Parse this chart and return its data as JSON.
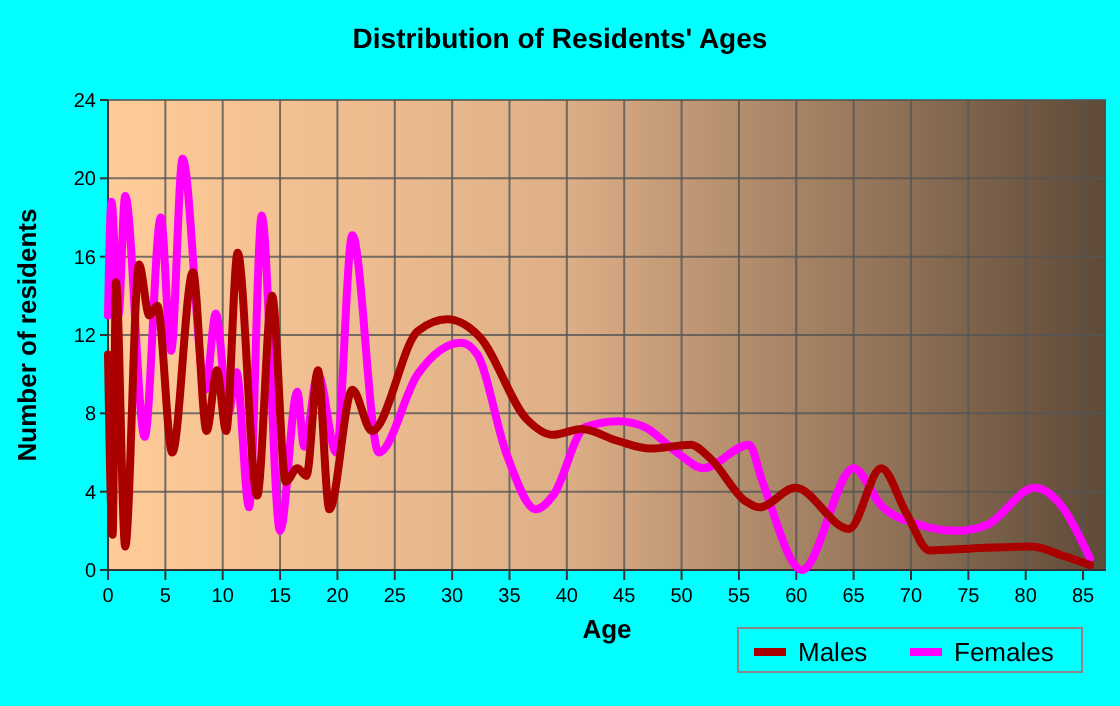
{
  "chart_data": {
    "type": "line",
    "title": "Distribution of Residents' Ages",
    "xlabel": "Age",
    "ylabel": "Number of residents",
    "xlim": [
      0,
      87
    ],
    "xticks": [
      0,
      5,
      10,
      15,
      20,
      25,
      30,
      35,
      40,
      45,
      50,
      55,
      60,
      65,
      70,
      75,
      80,
      85
    ],
    "ylim": [
      0,
      24
    ],
    "yticks": [
      0,
      4,
      8,
      12,
      16,
      20,
      24
    ],
    "grid": true,
    "legend": "bottom right",
    "marker": "none",
    "line_style": "solid",
    "series": [
      {
        "name": "Males",
        "color": "#aa0000",
        "x": [
          0,
          0.4,
          0.7,
          1.5,
          2.7,
          3.6,
          4.3,
          5.6,
          7.4,
          8.6,
          9.5,
          10.3,
          11.3,
          13,
          14.3,
          15.5,
          16.5,
          17.3,
          18.3,
          19.3,
          21.3,
          23,
          27,
          29.6,
          32.4,
          36.5,
          38.8,
          41.3,
          44.4,
          47.3,
          50.8,
          52.5,
          55.6,
          56.8,
          59.9,
          64.6,
          67.4,
          69.6,
          71.6,
          75.3,
          80.5,
          83.4,
          85.6
        ],
        "values": [
          11,
          1.8,
          14.7,
          1.2,
          15.6,
          13,
          13.5,
          6,
          15.2,
          7.1,
          10.2,
          7.1,
          16.2,
          3.8,
          14,
          4.5,
          5.2,
          4.8,
          10.2,
          3.1,
          9.2,
          7.1,
          12.2,
          12.8,
          11.9,
          7.7,
          6.9,
          7.2,
          6.6,
          6.2,
          6.4,
          5.7,
          3.5,
          3.2,
          4.2,
          2.1,
          5.2,
          2.9,
          1,
          1.1,
          1.2,
          0.7,
          0.25
        ]
      },
      {
        "name": "Females",
        "color": "#ff00ff",
        "x": [
          0,
          0.3,
          0.9,
          1.5,
          3.2,
          4.6,
          5.5,
          6.5,
          8.5,
          9.4,
          10.5,
          11.2,
          12.3,
          13.4,
          15,
          16.5,
          17.1,
          18.3,
          19.9,
          21.3,
          23.6,
          27,
          30.8,
          32.2,
          34.7,
          37.3,
          38.8,
          41.6,
          44.5,
          46.8,
          49.6,
          51.9,
          55.9,
          57,
          60.5,
          65,
          67.4,
          70.8,
          74,
          76.6,
          80.8,
          82.8,
          85.6
        ],
        "values": [
          13,
          18.8,
          13,
          19.1,
          6.8,
          18,
          11.2,
          21,
          9.2,
          13.1,
          8,
          10.1,
          3.2,
          18.1,
          2,
          9.1,
          6.3,
          10,
          6,
          17.1,
          6,
          10,
          11.6,
          11,
          6,
          3.1,
          3.8,
          7.3,
          7.6,
          7.3,
          6,
          5.2,
          6.4,
          4.6,
          0,
          5.2,
          3.3,
          2.3,
          2,
          2.3,
          4.2,
          3.5,
          0.6
        ]
      }
    ]
  }
}
